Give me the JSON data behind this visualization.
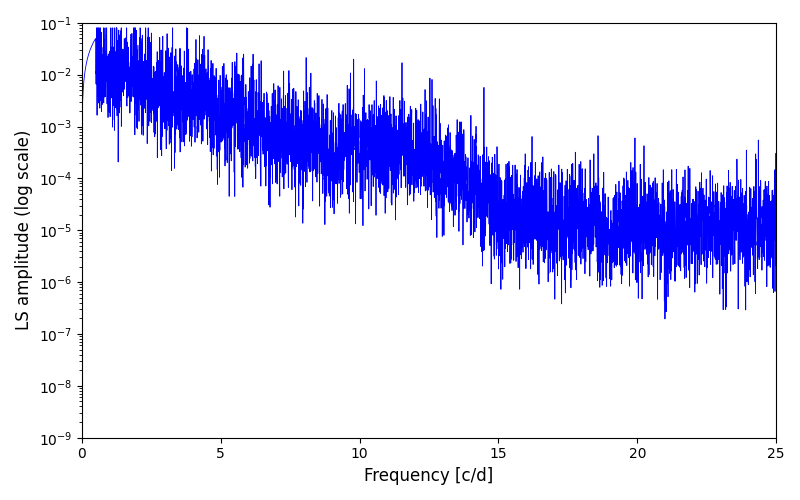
{
  "title": "",
  "xlabel": "Frequency [c/d]",
  "ylabel": "LS amplitude (log scale)",
  "xlim": [
    0,
    25
  ],
  "ylim_log": [
    1e-09,
    0.1
  ],
  "line_color": "#0000ff",
  "line_width": 0.6,
  "background_color": "#ffffff",
  "figsize": [
    8.0,
    5.0
  ],
  "dpi": 100,
  "freq_max": 25.0,
  "n_points": 5000,
  "seed": 42
}
